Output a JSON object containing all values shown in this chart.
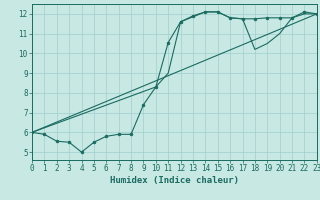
{
  "xlabel": "Humidex (Indice chaleur)",
  "xlim": [
    0,
    23
  ],
  "ylim": [
    4.6,
    12.5
  ],
  "xticks": [
    0,
    1,
    2,
    3,
    4,
    5,
    6,
    7,
    8,
    9,
    10,
    11,
    12,
    13,
    14,
    15,
    16,
    17,
    18,
    19,
    20,
    21,
    22,
    23
  ],
  "yticks": [
    5,
    6,
    7,
    8,
    9,
    10,
    11,
    12
  ],
  "background_color": "#c8e8e4",
  "grid_color": "#9fcfcc",
  "line_color": "#1a6b60",
  "line1_x": [
    0,
    1,
    2,
    3,
    4,
    5,
    6,
    7,
    8,
    9,
    10,
    11,
    12,
    13,
    14,
    15,
    16,
    17,
    18,
    19,
    20,
    21,
    22,
    23
  ],
  "line1_y": [
    6.0,
    5.9,
    5.55,
    5.5,
    5.0,
    5.5,
    5.8,
    5.9,
    5.9,
    7.4,
    8.3,
    10.55,
    11.6,
    11.9,
    12.1,
    12.1,
    11.8,
    11.75,
    11.75,
    11.8,
    11.8,
    11.8,
    12.1,
    12.0
  ],
  "line2_x": [
    0,
    23
  ],
  "line2_y": [
    6.0,
    12.0
  ],
  "line3_x": [
    0,
    10,
    11,
    12,
    13,
    14,
    15,
    16,
    17,
    18,
    19,
    20,
    21,
    22,
    23
  ],
  "line3_y": [
    6.0,
    8.3,
    9.0,
    11.6,
    11.85,
    12.1,
    12.1,
    11.8,
    11.75,
    10.2,
    10.5,
    11.0,
    11.8,
    12.0,
    12.0
  ]
}
